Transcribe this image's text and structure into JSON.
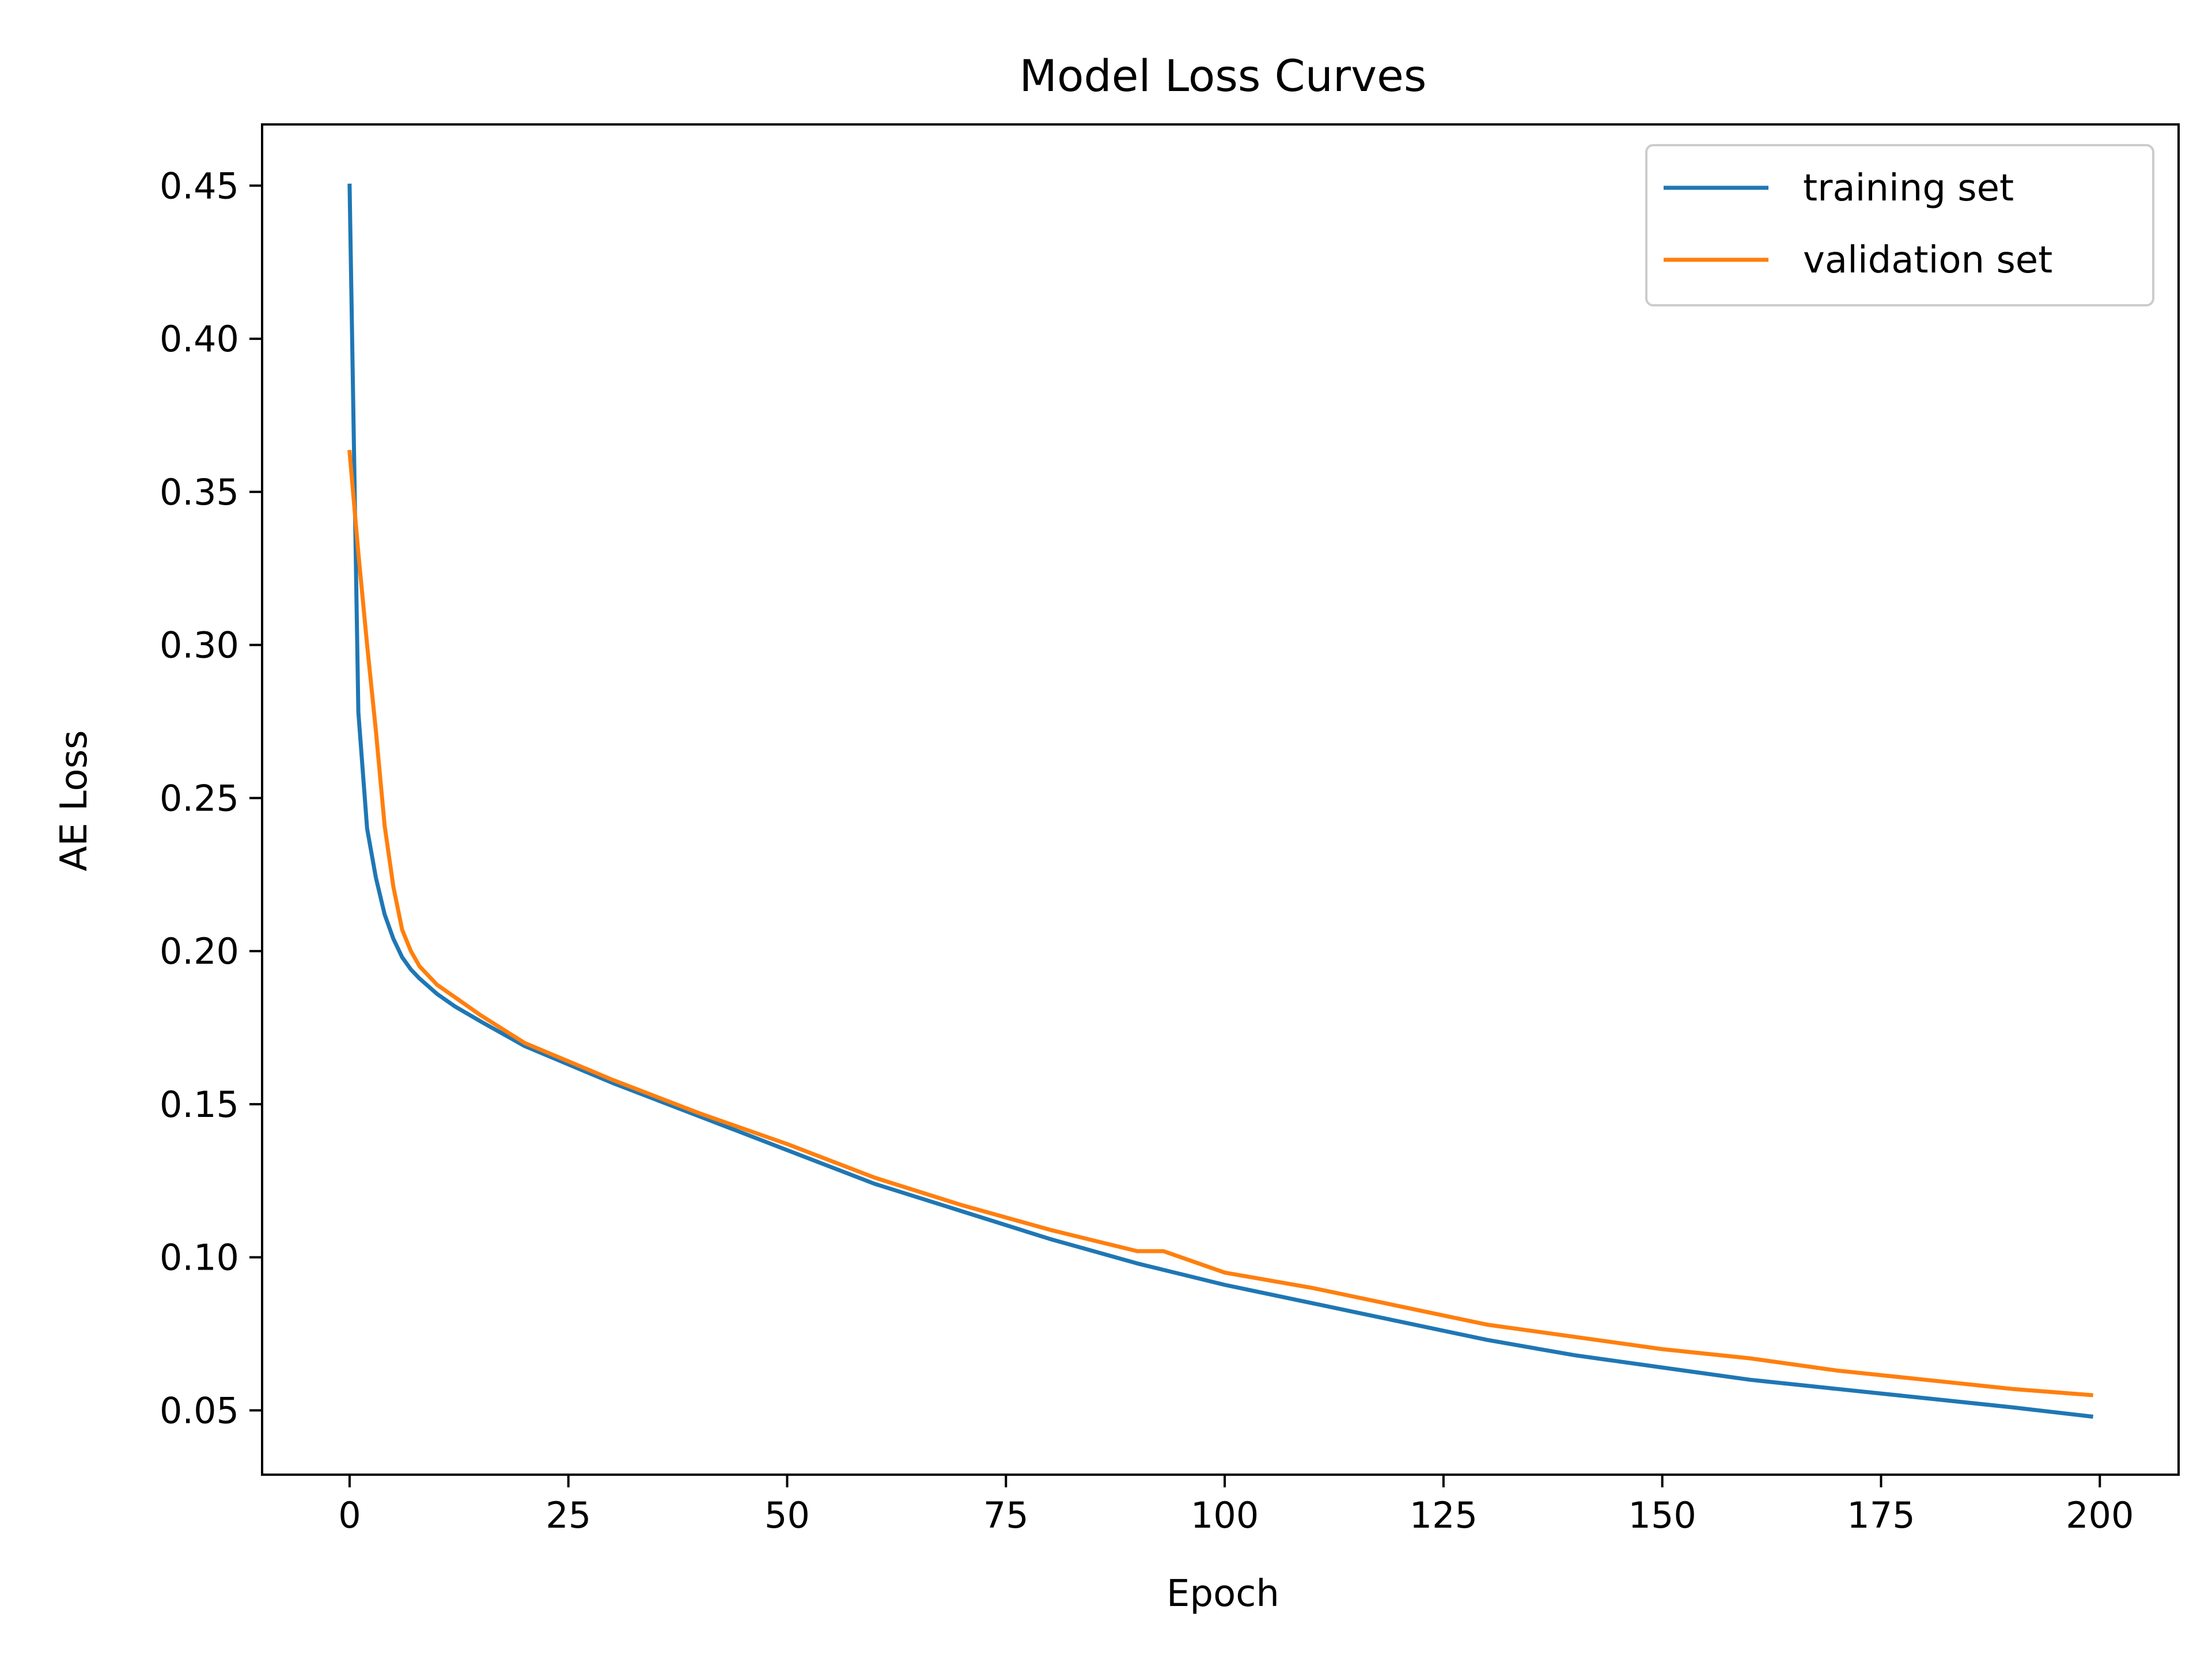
{
  "chart_data": {
    "type": "line",
    "title": "Model Loss Curves",
    "xlabel": "Epoch",
    "ylabel": "AE Loss",
    "xlim": [
      -10,
      209
    ],
    "ylim": [
      0.029,
      0.47
    ],
    "grid": false,
    "legend_position": "top-right",
    "x_ticks": [
      0,
      25,
      50,
      75,
      100,
      125,
      150,
      175,
      200
    ],
    "y_ticks": [
      0.05,
      0.1,
      0.15,
      0.2,
      0.25,
      0.3,
      0.35,
      0.4,
      0.45
    ],
    "y_tick_labels": [
      "0.05",
      "0.10",
      "0.15",
      "0.20",
      "0.25",
      "0.30",
      "0.35",
      "0.40",
      "0.45"
    ],
    "series": [
      {
        "name": "training set",
        "color": "#1f77b4",
        "x": [
          0,
          1,
          2,
          3,
          4,
          5,
          6,
          7,
          8,
          10,
          12,
          15,
          20,
          25,
          30,
          40,
          50,
          60,
          70,
          80,
          90,
          100,
          110,
          120,
          130,
          140,
          150,
          160,
          170,
          180,
          190,
          199
        ],
        "y": [
          0.45,
          0.278,
          0.24,
          0.224,
          0.212,
          0.204,
          0.198,
          0.194,
          0.191,
          0.186,
          0.182,
          0.177,
          0.169,
          0.163,
          0.157,
          0.146,
          0.135,
          0.124,
          0.115,
          0.106,
          0.098,
          0.091,
          0.085,
          0.079,
          0.073,
          0.068,
          0.064,
          0.06,
          0.057,
          0.054,
          0.051,
          0.048
        ]
      },
      {
        "name": "validation set",
        "color": "#ff7f0e",
        "x": [
          0,
          1,
          2,
          3,
          4,
          5,
          6,
          7,
          8,
          10,
          12,
          15,
          20,
          25,
          30,
          40,
          50,
          60,
          70,
          80,
          90,
          93,
          100,
          110,
          120,
          130,
          140,
          150,
          160,
          170,
          180,
          190,
          199
        ],
        "y": [
          0.363,
          0.33,
          0.3,
          0.272,
          0.241,
          0.221,
          0.207,
          0.2,
          0.195,
          0.189,
          0.185,
          0.179,
          0.17,
          0.164,
          0.158,
          0.147,
          0.137,
          0.126,
          0.117,
          0.109,
          0.102,
          0.102,
          0.095,
          0.09,
          0.084,
          0.078,
          0.074,
          0.07,
          0.067,
          0.063,
          0.06,
          0.057,
          0.055
        ]
      }
    ]
  }
}
